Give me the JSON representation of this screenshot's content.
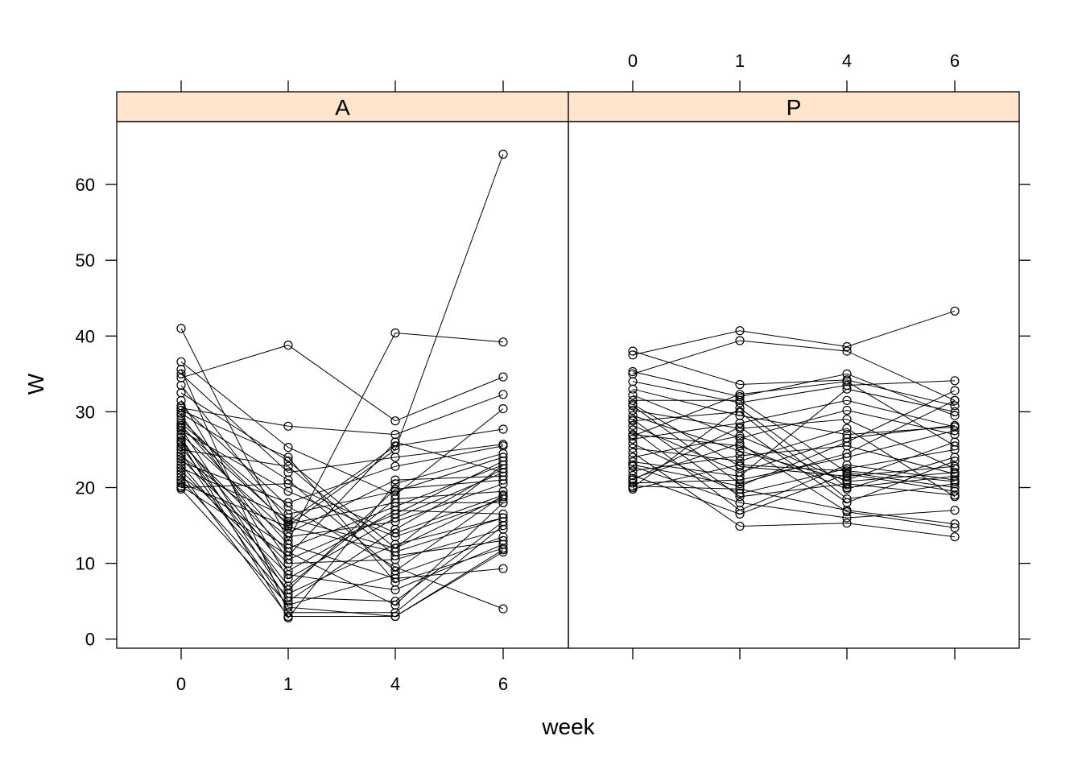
{
  "chart_data": {
    "type": "line",
    "xlabel": "week",
    "ylabel": "W",
    "x_categories": [
      "0",
      "1",
      "4",
      "6"
    ],
    "yticks": [
      0,
      10,
      20,
      30,
      40,
      50,
      60
    ],
    "ylim": [
      -1.2,
      68.3
    ],
    "grid": false,
    "colors": {
      "strip": "#ffe5cc",
      "line": "#000000",
      "point": "#000000"
    },
    "panels": [
      {
        "strip": "A",
        "series": [
          {
            "values": [
              41.0,
              13.0,
              40.4,
              39.2
            ]
          },
          {
            "values": [
              34.5,
              38.8,
              28.8,
              34.6
            ]
          },
          {
            "values": [
              30.5,
              28.1,
              27.0,
              32.3
            ]
          },
          {
            "values": [
              36.6,
              25.3,
              19.0,
              30.4
            ]
          },
          {
            "values": [
              35.6,
              3.5,
              3.5,
              15.0
            ]
          },
          {
            "values": [
              35.0,
              22.0,
              24.0,
              25.7
            ]
          },
          {
            "values": [
              33.5,
              15.5,
              25.5,
              27.7
            ]
          },
          {
            "values": [
              32.5,
              23.5,
              12.0,
              23.0
            ]
          },
          {
            "values": [
              31.5,
              8.0,
              16.0,
              22.0
            ]
          },
          {
            "values": [
              30.8,
              17.5,
              9.5,
              4.0
            ]
          },
          {
            "values": [
              30.2,
              24.0,
              7.5,
              12.0
            ]
          },
          {
            "values": [
              29.8,
              21.0,
              9.0,
              19.0
            ]
          },
          {
            "values": [
              29.5,
              10.5,
              16.5,
              23.5
            ]
          },
          {
            "values": [
              29.0,
              15.0,
              25.0,
              64.0
            ]
          },
          {
            "values": [
              28.5,
              16.5,
              19.5,
              24.0
            ]
          },
          {
            "values": [
              28.2,
              12.5,
              8.0,
              9.3
            ]
          },
          {
            "values": [
              27.8,
              6.0,
              12.5,
              16.0
            ]
          },
          {
            "values": [
              27.5,
              19.5,
              13.5,
              18.5
            ]
          },
          {
            "values": [
              27.0,
              14.0,
              21.0,
              21.5
            ]
          },
          {
            "values": [
              26.6,
              5.0,
              14.5,
              22.5
            ]
          },
          {
            "values": [
              26.2,
              9.0,
              17.0,
              16.5
            ]
          },
          {
            "values": [
              25.8,
              11.5,
              4.5,
              18.0
            ]
          },
          {
            "values": [
              25.4,
              7.0,
              18.5,
              19.5
            ]
          },
          {
            "values": [
              25.0,
              22.8,
              11.0,
              13.0
            ]
          },
          {
            "values": [
              24.6,
              4.2,
              3.0,
              11.5
            ]
          },
          {
            "values": [
              24.2,
              13.5,
              15.5,
              20.5
            ]
          },
          {
            "values": [
              23.8,
              10.0,
              10.5,
              14.5
            ]
          },
          {
            "values": [
              23.4,
              18.0,
              22.8,
              25.5
            ]
          },
          {
            "values": [
              23.0,
              6.5,
              19.8,
              21.0
            ]
          },
          {
            "values": [
              22.6,
              16.0,
              12.0,
              18.8
            ]
          },
          {
            "values": [
              22.2,
              8.5,
              6.5,
              12.5
            ]
          },
          {
            "values": [
              21.8,
              3.0,
              3.0,
              11.8
            ]
          },
          {
            "values": [
              21.4,
              12.0,
              17.5,
              23.0
            ]
          },
          {
            "values": [
              21.0,
              5.5,
              5.0,
              15.5
            ]
          },
          {
            "values": [
              20.6,
              14.8,
              11.5,
              16.0
            ]
          },
          {
            "values": [
              20.2,
              11.0,
              26.0,
              22.0
            ]
          },
          {
            "values": [
              19.8,
              4.5,
              8.5,
              13.5
            ]
          },
          {
            "values": [
              20.0,
              20.5,
              14.0,
              19.0
            ]
          },
          {
            "values": [
              26.0,
              2.8,
              20.5,
              24.5
            ]
          },
          {
            "values": [
              28.0,
              15.2,
              18.0,
              18.0
            ]
          }
        ]
      },
      {
        "strip": "P",
        "series": [
          {
            "values": [
              37.5,
              40.7,
              38.6,
              43.3
            ]
          },
          {
            "values": [
              35.0,
              39.4,
              38.0,
              31.5
            ]
          },
          {
            "values": [
              38.0,
              33.6,
              34.2,
              30.8
            ]
          },
          {
            "values": [
              35.3,
              32.0,
              35.0,
              29.5
            ]
          },
          {
            "values": [
              34.0,
              31.2,
              33.5,
              34.1
            ]
          },
          {
            "values": [
              33.0,
              29.5,
              27.0,
              28.0
            ]
          },
          {
            "values": [
              32.2,
              26.5,
              30.2,
              27.0
            ]
          },
          {
            "values": [
              31.5,
              31.5,
              22.0,
              20.0
            ]
          },
          {
            "values": [
              30.8,
              20.5,
              24.5,
              31.5
            ]
          },
          {
            "values": [
              30.2,
              27.8,
              29.0,
              22.5
            ]
          },
          {
            "values": [
              29.5,
              24.8,
              21.0,
              26.0
            ]
          },
          {
            "values": [
              28.8,
              30.0,
              18.5,
              20.5
            ]
          },
          {
            "values": [
              28.2,
              22.0,
              26.5,
              28.2
            ]
          },
          {
            "values": [
              27.6,
              17.0,
              23.0,
              21.0
            ]
          },
          {
            "values": [
              27.0,
              25.5,
              19.8,
              24.0
            ]
          },
          {
            "values": [
              26.4,
              28.5,
              31.5,
              28.0
            ]
          },
          {
            "values": [
              25.8,
              19.2,
              22.5,
              25.0
            ]
          },
          {
            "values": [
              25.2,
              23.5,
              27.8,
              18.8
            ]
          },
          {
            "values": [
              24.6,
              14.9,
              15.3,
              13.5
            ]
          },
          {
            "values": [
              24.0,
              26.8,
              20.8,
              22.0
            ]
          },
          {
            "values": [
              23.4,
              21.5,
              33.0,
              30.0
            ]
          },
          {
            "values": [
              22.8,
              18.0,
              16.0,
              17.0
            ]
          },
          {
            "values": [
              22.2,
              24.2,
              25.5,
              21.8
            ]
          },
          {
            "values": [
              21.6,
              16.5,
              21.8,
              19.5
            ]
          },
          {
            "values": [
              21.0,
              28.0,
              18.0,
              23.5
            ]
          },
          {
            "values": [
              20.6,
              21.0,
              24.0,
              27.5
            ]
          },
          {
            "values": [
              20.2,
              19.8,
              17.0,
              15.2
            ]
          },
          {
            "values": [
              19.8,
              23.0,
              22.2,
              20.8
            ]
          },
          {
            "values": [
              20.0,
              30.5,
              20.0,
              21.5
            ]
          },
          {
            "values": [
              21.2,
              25.8,
              16.8,
              14.7
            ]
          },
          {
            "values": [
              23.0,
              20.2,
              26.0,
              32.8
            ]
          },
          {
            "values": [
              26.8,
              32.3,
              34.0,
              25.5
            ]
          },
          {
            "values": [
              29.0,
              18.8,
              20.5,
              19.0
            ]
          },
          {
            "values": [
              31.0,
              22.8,
              21.5,
              22.8
            ]
          }
        ]
      }
    ]
  }
}
